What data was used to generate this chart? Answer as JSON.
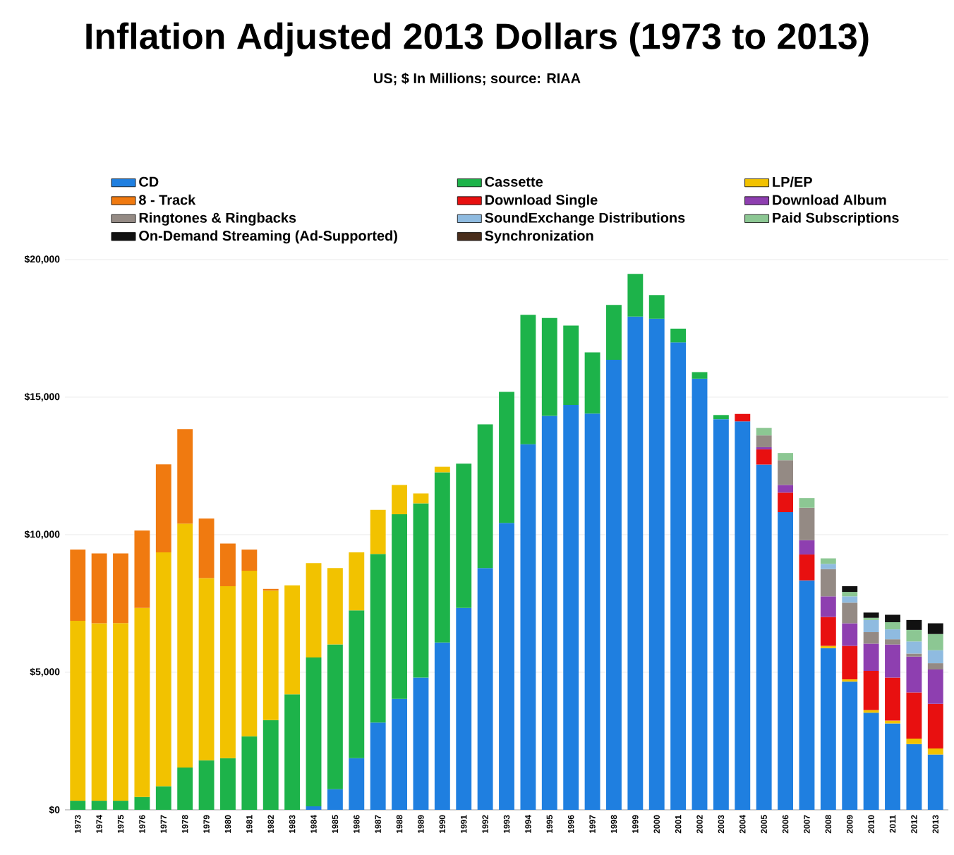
{
  "chart_data": {
    "type": "bar",
    "stacked": true,
    "title": "Inflation Adjusted 2013 Dollars (1973 to 2013)",
    "subtitle": "US; $ In Millions; source: RIAA",
    "categories": [
      "1973",
      "1974",
      "1975",
      "1976",
      "1977",
      "1978",
      "1979",
      "1980",
      "1981",
      "1982",
      "1983",
      "1984",
      "1985",
      "1986",
      "1987",
      "1988",
      "1989",
      "1990",
      "1991",
      "1992",
      "1993",
      "1994",
      "1995",
      "1996",
      "1997",
      "1998",
      "1999",
      "2000",
      "2001",
      "2002",
      "2003",
      "2004",
      "2005",
      "2006",
      "2007",
      "2008",
      "2009",
      "2010",
      "2011",
      "2012",
      "2013"
    ],
    "series": [
      {
        "name": "CD",
        "color": "#1f7fe0",
        "values": [
          null,
          null,
          null,
          null,
          null,
          null,
          null,
          null,
          null,
          null,
          null,
          130,
          750,
          1880,
          3170,
          4030,
          4810,
          6080,
          7340,
          8790,
          10430,
          13290,
          14320,
          14720,
          14400,
          16360,
          17930,
          17850,
          16990,
          15670,
          14200,
          14120,
          12550,
          10820,
          8340,
          5880,
          4660,
          3530,
          3140,
          2390,
          2010
        ]
      },
      {
        "name": "Cassette",
        "color": "#1db34a",
        "values": [
          330,
          330,
          330,
          470,
          860,
          1540,
          1800,
          1880,
          2670,
          3260,
          4200,
          5410,
          5260,
          5370,
          6130,
          6710,
          6330,
          6190,
          5240,
          5220,
          4760,
          4700,
          3560,
          2880,
          2230,
          1990,
          1550,
          860,
          500,
          240,
          150,
          null,
          null,
          null,
          null,
          null,
          null,
          null,
          null,
          null,
          null
        ]
      },
      {
        "name": "LP/EP",
        "color": "#f2c200",
        "values": [
          6540,
          6450,
          6460,
          6870,
          8500,
          8860,
          6620,
          6250,
          6020,
          4710,
          3960,
          3430,
          2780,
          2110,
          1600,
          1070,
          360,
          200,
          null,
          null,
          null,
          null,
          null,
          null,
          null,
          null,
          null,
          null,
          null,
          null,
          null,
          null,
          null,
          null,
          null,
          80,
          80,
          100,
          100,
          200,
          220
        ]
      },
      {
        "name": "8 - Track",
        "color": "#f07a10",
        "values": [
          2590,
          2540,
          2530,
          2810,
          3200,
          3440,
          2170,
          1550,
          770,
          60,
          null,
          null,
          null,
          null,
          null,
          null,
          null,
          null,
          null,
          null,
          null,
          null,
          null,
          null,
          null,
          null,
          null,
          null,
          null,
          null,
          null,
          null,
          null,
          null,
          null,
          null,
          null,
          null,
          null,
          null,
          null
        ]
      },
      {
        "name": "Download Single",
        "color": "#e81010",
        "values": [
          null,
          null,
          null,
          null,
          null,
          null,
          null,
          null,
          null,
          null,
          null,
          null,
          null,
          null,
          null,
          null,
          null,
          null,
          null,
          null,
          null,
          null,
          null,
          null,
          null,
          null,
          null,
          null,
          null,
          null,
          null,
          270,
          550,
          710,
          940,
          1050,
          1220,
          1420,
          1570,
          1680,
          1620
        ]
      },
      {
        "name": "Download Album",
        "color": "#8e3fb0",
        "values": [
          null,
          null,
          null,
          null,
          null,
          null,
          null,
          null,
          null,
          null,
          null,
          null,
          null,
          null,
          null,
          null,
          null,
          null,
          null,
          null,
          null,
          null,
          null,
          null,
          null,
          null,
          null,
          null,
          null,
          null,
          null,
          null,
          80,
          280,
          520,
          750,
          820,
          990,
          1200,
          1300,
          1250
        ]
      },
      {
        "name": "Ringtones & Ringbacks",
        "color": "#948a84",
        "values": [
          null,
          null,
          null,
          null,
          null,
          null,
          null,
          null,
          null,
          null,
          null,
          null,
          null,
          null,
          null,
          null,
          null,
          null,
          null,
          null,
          null,
          null,
          null,
          null,
          null,
          null,
          null,
          null,
          null,
          null,
          null,
          null,
          430,
          900,
          1180,
          990,
          750,
          420,
          190,
          110,
          230
        ]
      },
      {
        "name": "SoundExchange Distributions",
        "color": "#8fbbe0",
        "values": [
          null,
          null,
          null,
          null,
          null,
          null,
          null,
          null,
          null,
          null,
          null,
          null,
          null,
          null,
          null,
          null,
          null,
          null,
          null,
          null,
          null,
          null,
          null,
          null,
          null,
          null,
          null,
          null,
          null,
          null,
          null,
          null,
          null,
          null,
          null,
          190,
          230,
          440,
          360,
          440,
          470
        ]
      },
      {
        "name": "Paid Subscriptions",
        "color": "#8cc793",
        "values": [
          null,
          null,
          null,
          null,
          null,
          null,
          null,
          null,
          null,
          null,
          null,
          null,
          null,
          null,
          null,
          null,
          null,
          null,
          null,
          null,
          null,
          null,
          null,
          null,
          null,
          null,
          null,
          null,
          null,
          null,
          null,
          null,
          270,
          260,
          350,
          200,
          160,
          80,
          260,
          420,
          590
        ]
      },
      {
        "name": "On-Demand Streaming (Ad-Supported)",
        "color": "#111111",
        "values": [
          null,
          null,
          null,
          null,
          null,
          null,
          null,
          null,
          null,
          null,
          null,
          null,
          null,
          null,
          null,
          null,
          null,
          null,
          null,
          null,
          null,
          null,
          null,
          null,
          null,
          null,
          null,
          null,
          null,
          null,
          null,
          null,
          null,
          null,
          null,
          null,
          210,
          190,
          270,
          360,
          390
        ]
      },
      {
        "name": "Synchronization",
        "color": "#4a2e1c",
        "values": [
          null,
          null,
          null,
          null,
          null,
          null,
          null,
          null,
          null,
          null,
          null,
          null,
          null,
          null,
          null,
          null,
          null,
          null,
          null,
          null,
          null,
          null,
          null,
          null,
          null,
          null,
          null,
          null,
          null,
          null,
          null,
          null,
          null,
          null,
          null,
          null,
          null,
          null,
          null,
          null,
          null
        ]
      }
    ],
    "ylim": [
      0,
      20000
    ],
    "yticks": [
      {
        "value": 0,
        "label": "$0"
      },
      {
        "value": 5000,
        "label": "$5,000"
      },
      {
        "value": 10000,
        "label": "$10,000"
      },
      {
        "value": 15000,
        "label": "$15,000"
      },
      {
        "value": 20000,
        "label": "$20,000"
      }
    ],
    "grid": "y",
    "legend": "top"
  }
}
